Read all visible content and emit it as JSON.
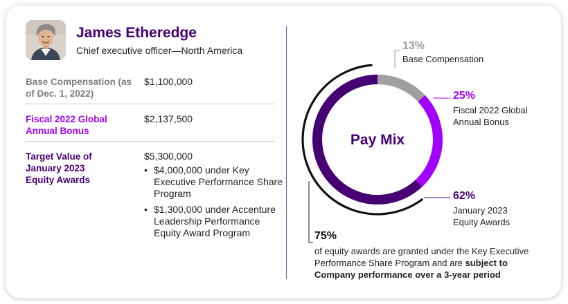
{
  "colors": {
    "name": "#460073",
    "fiscal_label": "#a100ff",
    "equity_label": "#460073",
    "base_label": "#7f7f7f",
    "seg_base": "#a0a0a0",
    "seg_bonus": "#a100ff",
    "seg_equity": "#460073",
    "bracket": "#111111",
    "divider": "#7b5cb0"
  },
  "executive": {
    "name": "James Etheredge",
    "title": "Chief executive officer—North America"
  },
  "rows": [
    {
      "label": "Base Compensation (as of Dec. 1, 2022)",
      "value": "$1,100,000"
    },
    {
      "label": "Fiscal 2022 Global Annual Bonus",
      "value": "$2,137,500"
    },
    {
      "label": "Target Value of January 2023 Equity Awards",
      "value": "$5,300,000"
    }
  ],
  "equity_bullets": [
    "$4,000,000 under Key Executive Performance Share Program",
    "$1,300,000 under Accenture Leadership Performance Equity Award Program"
  ],
  "bullet_glyph": "•",
  "chart_data": {
    "type": "pie",
    "title": "Pay Mix",
    "series": [
      {
        "name": "Base Compensation",
        "percent": "13%",
        "value": 13,
        "color": "#a0a0a0"
      },
      {
        "name": "Fiscal 2022 Global Annual Bonus",
        "percent": "25%",
        "value": 25,
        "color": "#a100ff"
      },
      {
        "name": "January 2023 Equity Awards",
        "percent": "62%",
        "value": 62,
        "color": "#460073"
      }
    ]
  },
  "note": {
    "percent": "75%",
    "text_plain": "of equity awards are granted under the Key Executive Performance Share Program and are ",
    "text_bold": "subject to Company performance over a 3-year period"
  }
}
